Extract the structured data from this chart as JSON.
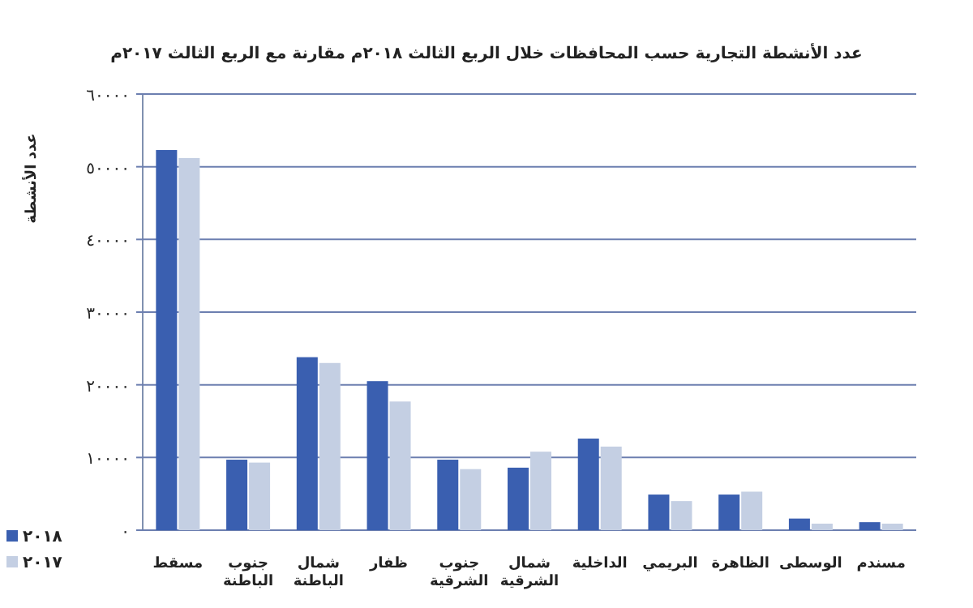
{
  "chart_data": {
    "type": "bar",
    "title": "عدد الأنشطة التجارية حسب المحافظات خلال الربع الثالث ٢٠١٨م مقارنة مع الربع الثالث ٢٠١٧م",
    "ylabel": "عدد الأنشطة",
    "categories": [
      "مسقط",
      "جنوب الباطنة",
      "شمال الباطنة",
      "ظفار",
      "جنوب الشرقية",
      "شمال الشرقية",
      "الداخلية",
      "البريمي",
      "الظاهرة",
      "الوسطى",
      "مسندم"
    ],
    "series": [
      {
        "name": "٢٠١٨",
        "color": "#3a5fb0",
        "values": [
          52300,
          9700,
          23800,
          20500,
          9700,
          8600,
          12600,
          4900,
          4900,
          1600,
          1100
        ]
      },
      {
        "name": "٢٠١٧",
        "color": "#c4cfe3",
        "values": [
          51200,
          9300,
          23000,
          17700,
          8400,
          10800,
          11500,
          4000,
          5300,
          900,
          900
        ]
      }
    ],
    "ylim": [
      0,
      60000
    ],
    "yticks": [
      {
        "value": 0,
        "label": "٠"
      },
      {
        "value": 10000,
        "label": "١٠٠٠٠"
      },
      {
        "value": 20000,
        "label": "٢٠٠٠٠"
      },
      {
        "value": 30000,
        "label": "٣٠٠٠٠"
      },
      {
        "value": 40000,
        "label": "٤٠٠٠٠"
      },
      {
        "value": 50000,
        "label": "٥٠٠٠٠"
      },
      {
        "value": 60000,
        "label": "٦٠٠٠٠"
      }
    ],
    "grid": "y",
    "legend": "bottom left"
  }
}
